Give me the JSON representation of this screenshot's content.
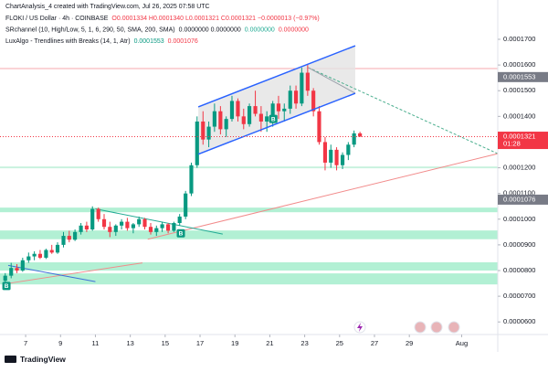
{
  "chart_data": {
    "type": "candlestick",
    "watermark": "ChartAnalysis_4 created with TradingView.com, Jul 26, 2025 07:58 UTC",
    "legend_lines": [
      [
        {
          "text": "FLOKI / US Dollar · 4h · COINBASE",
          "color": "#131722"
        },
        {
          "text": "O0.0001334 H0.0001340 L0.0001321 C0.0001321 −0.0000013 (−0.97%)",
          "color": "#f23645"
        }
      ],
      [
        {
          "text": "SRchannel (10, High/Low, 5, 1, 6, 290, 50, SMA, 200, SMA)",
          "color": "#131722"
        },
        {
          "text": "0.0000000 0.0000000",
          "color": "#131722"
        },
        {
          "text": "0.0000000",
          "color": "#22ab94"
        },
        {
          "text": "0.0000000",
          "color": "#f23645"
        }
      ],
      [
        {
          "text": "LuxAlgo - Trendlines with Breaks (14, 1, Atr)",
          "color": "#131722"
        },
        {
          "text": "0.0001553",
          "color": "#089981"
        },
        {
          "text": "0.0001076",
          "color": "#f23645"
        }
      ]
    ],
    "brand": "TradingView",
    "up_color": "#089981",
    "down_color": "#f23645",
    "x": [
      5.83,
      6.17,
      6.5,
      6.83,
      7.17,
      7.5,
      7.83,
      8.17,
      8.5,
      8.83,
      9.17,
      9.5,
      9.83,
      10.17,
      10.5,
      10.83,
      11.17,
      11.5,
      11.83,
      12.17,
      12.5,
      12.83,
      13.17,
      13.5,
      13.83,
      14.17,
      14.5,
      14.83,
      15.17,
      15.5,
      15.83,
      16.17,
      16.5,
      16.83,
      17.17,
      17.5,
      17.83,
      18.17,
      18.5,
      18.83,
      19.17,
      19.5,
      19.83,
      20.17,
      20.5,
      20.83,
      21.17,
      21.5,
      21.83,
      22.17,
      22.5,
      22.83,
      23.17,
      23.5,
      23.83,
      24.17,
      24.5,
      24.83,
      25.17,
      25.5,
      25.83,
      26.17
    ],
    "open": [
      7.6e-05,
      7.8e-05,
      8.1e-05,
      8e-05,
      8.4e-05,
      8.55e-05,
      8.65e-05,
      8.5e-05,
      8.8e-05,
      8.7e-05,
      9e-05,
      9.35e-05,
      9.2e-05,
      9.5e-05,
      9.75e-05,
      9.6e-05,
      0.000104,
      0.0001,
      9.7e-05,
      9.5e-05,
      9.75e-05,
      9.9e-05,
      9.65e-05,
      9.8e-05,
      0.0001,
      9.7e-05,
      9.5e-05,
      9.65e-05,
      9.8e-05,
      9.55e-05,
      9.85e-05,
      0.000101,
      0.00011,
      0.000121,
      0.000138,
      0.000131,
      0.000136,
      0.000142,
      0.000135,
      0.000139,
      0.000146,
      0.00014,
      0.000137,
      0.000144,
      0.000141,
      0.000138,
      0.00014,
      0.000145,
      0.000142,
      0.000143,
      0.00015,
      0.000145,
      0.000157,
      0.00015,
      0.000142,
      0.00013,
      0.000122,
      0.000127,
      0.000121,
      0.000125,
      0.000129,
      0.0001334
    ],
    "high": [
      7.9e-05,
      8.3e-05,
      8.25e-05,
      8.5e-05,
      8.7e-05,
      8.75e-05,
      8.8e-05,
      8.85e-05,
      9e-05,
      9.1e-05,
      9.5e-05,
      9.55e-05,
      9.6e-05,
      9.85e-05,
      9.9e-05,
      0.000105,
      0.0001045,
      0.000102,
      9.9e-05,
      9.8e-05,
      0.0001,
      0.0001005,
      9.85e-05,
      0.000101,
      0.0001005,
      9.85e-05,
      9.75e-05,
      9.9e-05,
      9.85e-05,
      9.9e-05,
      0.000102,
      0.000111,
      0.000122,
      0.00014,
      0.000142,
      0.000138,
      0.000145,
      0.000144,
      0.00014,
      0.000148,
      0.000147,
      0.000143,
      0.000145,
      0.00015,
      0.000144,
      0.000142,
      0.000146,
      0.000148,
      0.000145,
      0.000152,
      0.000152,
      0.000159,
      0.00016,
      0.000151,
      0.000144,
      0.000132,
      0.000129,
      0.000128,
      0.000126,
      0.00013,
      0.0001345,
      0.000134
    ],
    "low": [
      7.35e-05,
      7.7e-05,
      7.9e-05,
      7.95e-05,
      8.3e-05,
      8.4e-05,
      8.45e-05,
      8.45e-05,
      8.65e-05,
      8.65e-05,
      8.9e-05,
      9.1e-05,
      9.15e-05,
      9.4e-05,
      9.5e-05,
      9.55e-05,
      9.9e-05,
      9.6e-05,
      9.3e-05,
      9.35e-05,
      9.6e-05,
      9.55e-05,
      9.45e-05,
      9.7e-05,
      9.6e-05,
      9.4e-05,
      9.35e-05,
      9.5e-05,
      9.45e-05,
      9.5e-05,
      9.75e-05,
      0.0001,
      0.000109,
      0.00012,
      0.000129,
      0.000128,
      0.000134,
      0.000133,
      0.000132,
      0.000138,
      0.000138,
      0.000135,
      0.000136,
      0.00014,
      0.000134,
      0.000134,
      0.000136,
      0.000139,
      0.000138,
      0.000141,
      0.000143,
      0.000144,
      0.000148,
      0.00014,
      0.000129,
      0.000119,
      0.00012,
      0.000119,
      0.0001195,
      0.000123,
      0.000128,
      0.0001321
    ],
    "close": [
      7.8e-05,
      8.1e-05,
      8e-05,
      8.4e-05,
      8.55e-05,
      8.65e-05,
      8.5e-05,
      8.8e-05,
      8.7e-05,
      9e-05,
      9.35e-05,
      9.2e-05,
      9.5e-05,
      9.75e-05,
      9.6e-05,
      0.000104,
      0.0001,
      9.7e-05,
      9.5e-05,
      9.75e-05,
      9.9e-05,
      9.65e-05,
      9.8e-05,
      0.0001,
      9.7e-05,
      9.5e-05,
      9.65e-05,
      9.8e-05,
      9.55e-05,
      9.85e-05,
      0.000101,
      0.00011,
      0.000121,
      0.000138,
      0.000131,
      0.000136,
      0.000142,
      0.000135,
      0.000139,
      0.000146,
      0.00014,
      0.000137,
      0.000144,
      0.000141,
      0.000138,
      0.00014,
      0.000145,
      0.000142,
      0.000143,
      0.00015,
      0.000145,
      0.000157,
      0.00015,
      0.000142,
      0.00013,
      0.000122,
      0.000127,
      0.000121,
      0.000125,
      0.000129,
      0.0001334,
      0.0001321
    ],
    "xlim": [
      5.53,
      34.07
    ],
    "xticks": [
      7,
      9,
      11,
      13,
      15,
      17,
      19,
      21,
      23,
      25,
      27,
      29,
      {
        "value": 32,
        "label": "Aug"
      }
    ],
    "ylim": [
      5.51e-05,
      0.0001853
    ],
    "yticks": [
      {
        "value": 6e-05,
        "label": "0.0000600"
      },
      {
        "value": 7e-05,
        "label": "0.0000700"
      },
      {
        "value": 8e-05,
        "label": "0.0000800"
      },
      {
        "value": 9e-05,
        "label": "0.0000900"
      },
      {
        "value": 0.0001,
        "label": "0.0001000"
      },
      {
        "value": 0.00011,
        "label": "0.0001100"
      },
      {
        "value": 0.00012,
        "label": "0.0001200"
      },
      {
        "value": 0.00013,
        "label": "0.0001300"
      },
      {
        "value": 0.00014,
        "label": "0.0001400"
      },
      {
        "value": 0.00015,
        "label": "0.0001500"
      },
      {
        "value": 0.00016,
        "label": "0.0001600"
      },
      {
        "value": 0.00017,
        "label": "0.0001700"
      }
    ],
    "grid": false,
    "zones": [
      {
        "low": 0.0001027,
        "high": 0.0001045,
        "color": "#b2f0d4"
      },
      {
        "low": 9.22e-05,
        "high": 9.56e-05,
        "color": "#b2f0d4"
      },
      {
        "low": 8e-05,
        "high": 8.32e-05,
        "color": "#b2f0d4"
      },
      {
        "low": 7.46e-05,
        "high": 7.89e-05,
        "color": "#b2f0d4"
      },
      {
        "low": 0.0001198,
        "high": 0.0001205,
        "color": "#c8f2de"
      }
    ],
    "levels": [
      {
        "value": 0.0001586,
        "color": "#f7a8ae"
      }
    ],
    "channel": {
      "x": [
        16.9,
        25.9
      ],
      "upper": [
        0.0001437,
        0.0001675
      ],
      "lower": [
        0.0001253,
        0.000149
      ],
      "color": "#2962ff",
      "fill": "#e3e3e3"
    },
    "trendlines": [
      {
        "x": [
          23.2,
          34.07
        ],
        "y": [
          0.000159,
          0.0001255
        ],
        "color": "#4caf8f",
        "dash": true
      },
      {
        "x": [
          14,
          34.07
        ],
        "y": [
          9.22e-05,
          0.0001255
        ],
        "color": "#f28b8b",
        "dash": false
      },
      {
        "x": [
          6,
          13.7
        ],
        "y": [
          7.5e-05,
          8.3e-05
        ],
        "color": "#f28b8b",
        "dash": false
      },
      {
        "x": [
          6,
          11
        ],
        "y": [
          8.2e-05,
          7.57e-05
        ],
        "color": "#3f6fd8",
        "dash": false
      },
      {
        "x": [
          11,
          18.3
        ],
        "y": [
          0.000104,
          9.42e-05
        ],
        "color": "#22ab94",
        "dash": false
      },
      {
        "x": [
          23.2,
          25.9
        ],
        "y": [
          0.000159,
          0.000149
        ],
        "color": "#9aa0aa",
        "dash": false
      }
    ],
    "markers": [
      {
        "x": 5.9,
        "y": 7.4e-05,
        "label": "B"
      },
      {
        "x": 15.9,
        "y": 9.45e-05,
        "label": "B"
      },
      {
        "x": 21.2,
        "y": 0.000139,
        "label": "B"
      }
    ],
    "price_labels": [
      {
        "value": 0.0001553,
        "label": "0.0001553",
        "color": "#787b86"
      },
      {
        "value": 0.0001321,
        "label": "0.0001321",
        "color": "#f23645",
        "countdown": "01:28"
      },
      {
        "value": 0.0001076,
        "label": "0.0001076",
        "color": "#787b86"
      }
    ]
  }
}
